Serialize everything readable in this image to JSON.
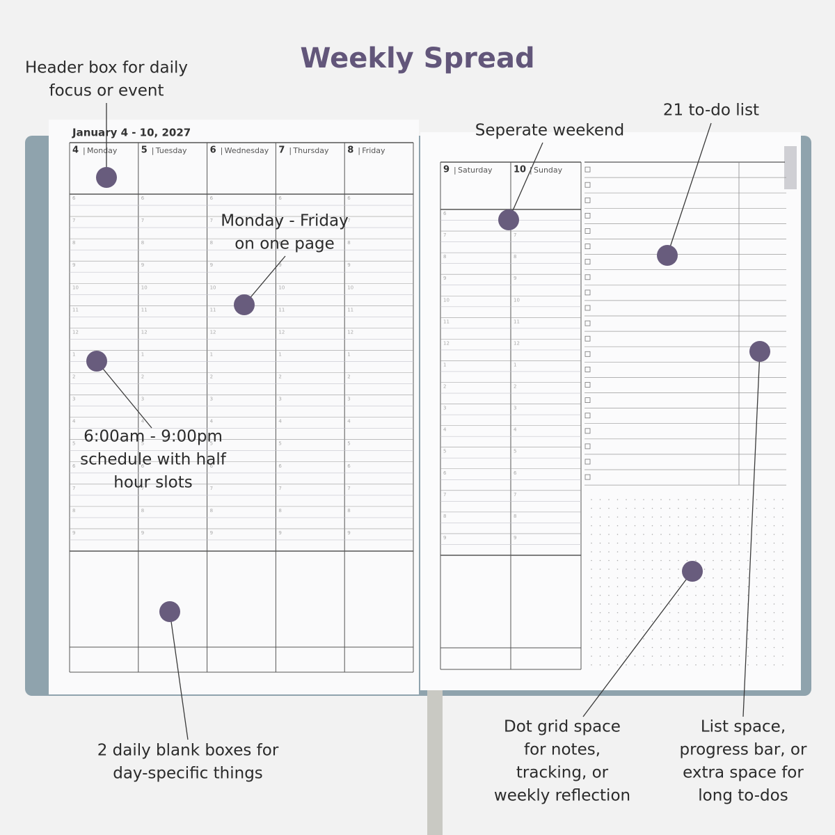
{
  "title": "Weekly Spread",
  "planner": {
    "week": "January 4 - 10, 2027",
    "separator": "|",
    "weekdays": [
      {
        "num": "4",
        "name": "Monday"
      },
      {
        "num": "5",
        "name": "Tuesday"
      },
      {
        "num": "6",
        "name": "Wednesday"
      },
      {
        "num": "7",
        "name": "Thursday"
      },
      {
        "num": "8",
        "name": "Friday"
      }
    ],
    "weekend": [
      {
        "num": "9",
        "name": "Saturday"
      },
      {
        "num": "10",
        "name": "Sunday"
      }
    ],
    "hours": [
      "6",
      "7",
      "8",
      "9",
      "10",
      "11",
      "12",
      "1",
      "2",
      "3",
      "4",
      "5",
      "6",
      "7",
      "8",
      "9"
    ]
  },
  "annotations": [
    {
      "lines": [
        "Header box for daily",
        "focus or event"
      ]
    },
    {
      "lines": [
        "Monday - Friday",
        "on one page"
      ]
    },
    {
      "lines": [
        "6:00am - 9:00pm",
        "schedule with half",
        "hour slots"
      ]
    },
    {
      "lines": [
        "2 daily blank boxes for",
        "day-specific things"
      ]
    },
    {
      "lines": [
        "Seperate weekend"
      ]
    },
    {
      "lines": [
        "21 to-do list"
      ]
    },
    {
      "lines": [
        "Dot grid space",
        "for notes,",
        "tracking, or",
        "weekly reflection"
      ]
    },
    {
      "lines": [
        "List space,",
        "progress bar, or",
        "extra space for",
        "long to-dos"
      ]
    }
  ]
}
